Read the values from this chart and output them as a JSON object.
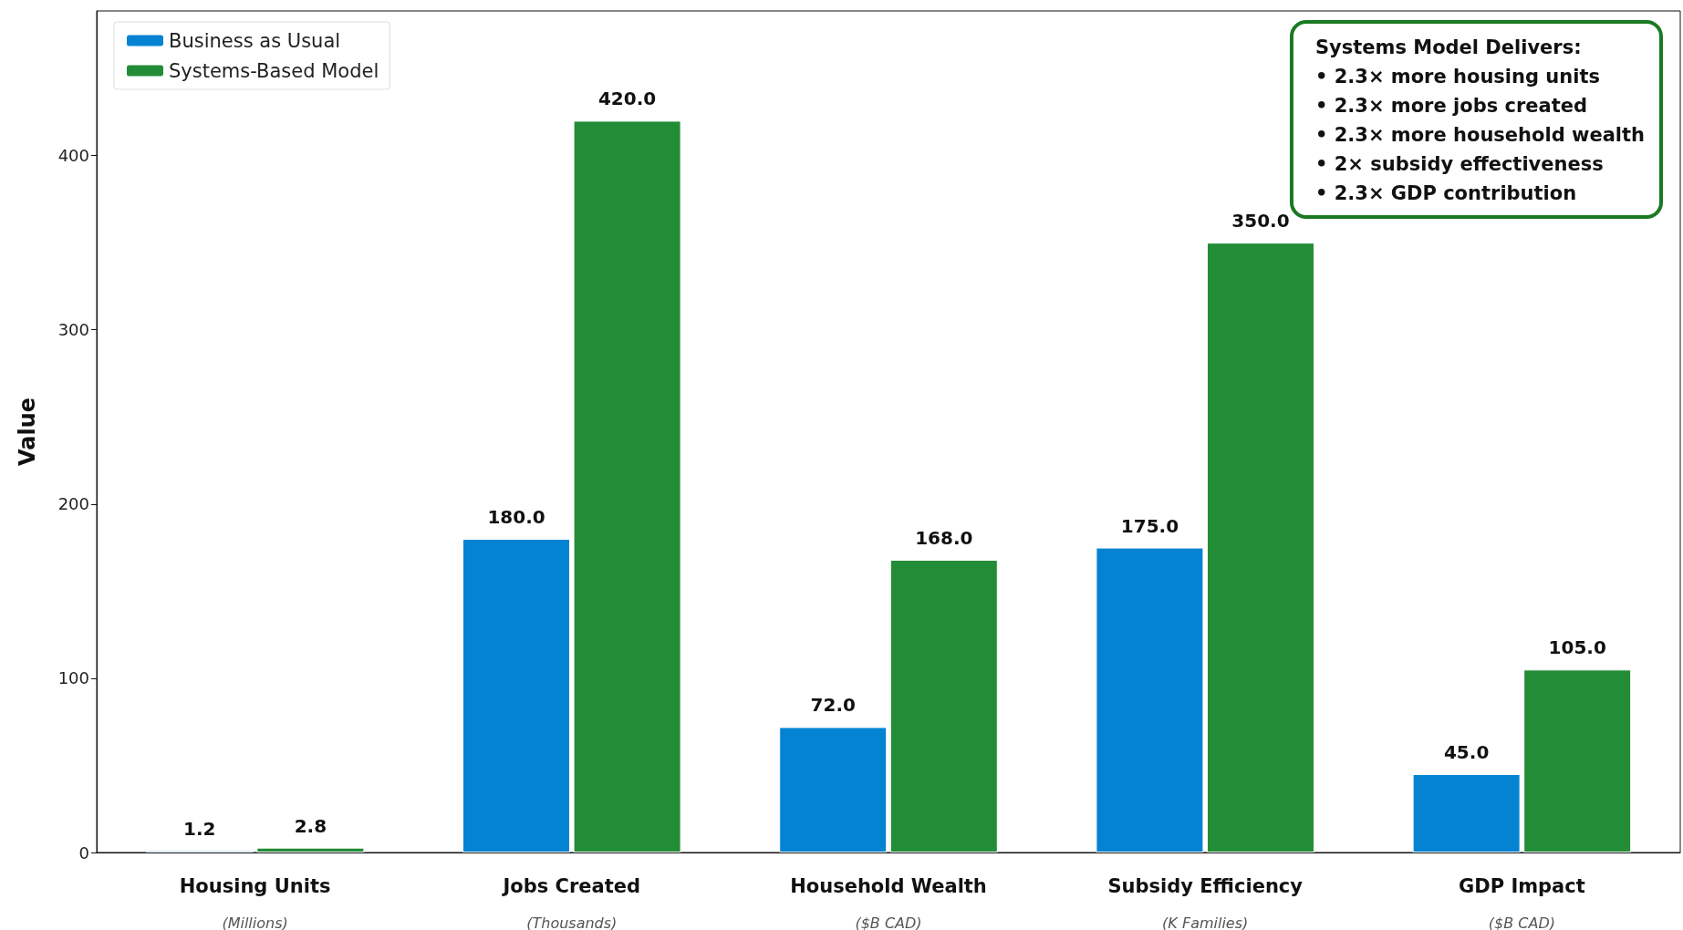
{
  "chart_data": {
    "type": "bar",
    "ylabel": "Value",
    "categories": [
      "Housing Units\n(Millions)",
      "Jobs Created\n(Thousands)",
      "Household Wealth\n($B CAD)",
      "Subsidy Efficiency\n(K Families)",
      "GDP Impact\n($B CAD)"
    ],
    "series": [
      {
        "name": "Business as Usual",
        "color": "#0383d2",
        "values": [
          1.2,
          180,
          72,
          175,
          45
        ],
        "value_labels": [
          "1.2",
          "180.0",
          "72.0",
          "175.0",
          "45.0"
        ]
      },
      {
        "name": "Systems-Based Model",
        "color": "#238c37",
        "values": [
          2.8,
          420,
          168,
          350,
          105
        ],
        "value_labels": [
          "2.8",
          "420.0",
          "168.0",
          "350.0",
          "105.0"
        ]
      }
    ],
    "ylim": [
      0,
      483
    ],
    "yticks": [
      0,
      100,
      200,
      300,
      400
    ],
    "grid": false,
    "legend": "top left",
    "annotations": [
      "Systems Model Delivers:\n• 2.3× more housing units\n• 2.3× more jobs created\n• 2.3× more household wealth\n• 2× subsidy effectiveness\n• 2.3× GDP contribution"
    ]
  }
}
